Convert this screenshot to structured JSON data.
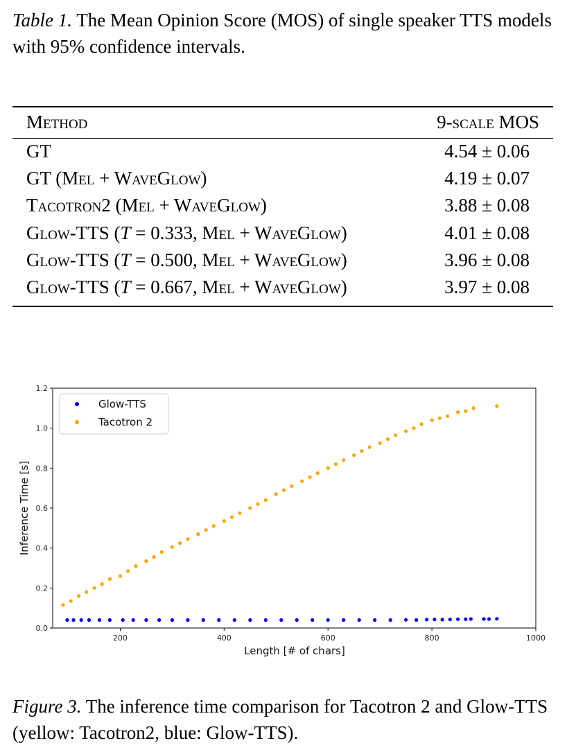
{
  "table_caption": {
    "lead": "Table 1.",
    "text": "The Mean Opinion Score (MOS) of single speaker TTS models with 95% confidence intervals."
  },
  "table": {
    "headers": {
      "method": "Method",
      "mos": "9-scale MOS"
    },
    "rows": [
      {
        "pre": "GT",
        "mid": "",
        "post": "",
        "mos": "4.54 ± 0.06"
      },
      {
        "pre": "GT (Mel + WaveGlow)",
        "mid": "",
        "post": "",
        "mos": "4.19 ± 0.07"
      },
      {
        "pre": "Tacotron2 (Mel + WaveGlow)",
        "mid": "",
        "post": "",
        "mos": "3.88 ± 0.08"
      },
      {
        "pre": "Glow-TTS (",
        "mid": "T",
        "post": " = 0.333, Mel + WaveGlow)",
        "mos": "4.01 ± 0.08"
      },
      {
        "pre": "Glow-TTS (",
        "mid": "T",
        "post": " = 0.500, Mel + WaveGlow)",
        "mos": "3.96 ± 0.08"
      },
      {
        "pre": "Glow-TTS (",
        "mid": "T",
        "post": " = 0.667, Mel + WaveGlow)",
        "mos": "3.97 ± 0.08"
      }
    ]
  },
  "chart_data": {
    "type": "scatter",
    "title": "",
    "xlabel": "Length [# of chars]",
    "ylabel": "Inference Time [s]",
    "xlim": [
      70,
      1000
    ],
    "ylim": [
      0.0,
      1.2
    ],
    "xticks": [
      "200",
      "400",
      "600",
      "800",
      "1000"
    ],
    "yticks": [
      "0.0",
      "0.2",
      "0.4",
      "0.6",
      "0.8",
      "1.0",
      "1.2"
    ],
    "legend_position": "top-left",
    "series": [
      {
        "name": "Glow-TTS",
        "color": "#0000ff",
        "points": [
          [
            98,
            0.04
          ],
          [
            110,
            0.04
          ],
          [
            125,
            0.04
          ],
          [
            140,
            0.04
          ],
          [
            160,
            0.04
          ],
          [
            180,
            0.04
          ],
          [
            205,
            0.04
          ],
          [
            225,
            0.04
          ],
          [
            250,
            0.04
          ],
          [
            275,
            0.04
          ],
          [
            300,
            0.04
          ],
          [
            330,
            0.04
          ],
          [
            360,
            0.04
          ],
          [
            390,
            0.04
          ],
          [
            420,
            0.04
          ],
          [
            450,
            0.04
          ],
          [
            480,
            0.04
          ],
          [
            510,
            0.04
          ],
          [
            540,
            0.04
          ],
          [
            570,
            0.04
          ],
          [
            600,
            0.04
          ],
          [
            630,
            0.04
          ],
          [
            660,
            0.04
          ],
          [
            690,
            0.04
          ],
          [
            720,
            0.04
          ],
          [
            750,
            0.041
          ],
          [
            770,
            0.04
          ],
          [
            790,
            0.042
          ],
          [
            805,
            0.043
          ],
          [
            820,
            0.042
          ],
          [
            835,
            0.043
          ],
          [
            850,
            0.044
          ],
          [
            865,
            0.044
          ],
          [
            875,
            0.045
          ],
          [
            900,
            0.045
          ],
          [
            910,
            0.045
          ],
          [
            925,
            0.046
          ]
        ]
      },
      {
        "name": "Tacotron 2",
        "color": "#ffa500",
        "points": [
          [
            90,
            0.115
          ],
          [
            105,
            0.135
          ],
          [
            120,
            0.16
          ],
          [
            135,
            0.18
          ],
          [
            150,
            0.2
          ],
          [
            165,
            0.22
          ],
          [
            180,
            0.245
          ],
          [
            200,
            0.26
          ],
          [
            215,
            0.285
          ],
          [
            230,
            0.31
          ],
          [
            250,
            0.335
          ],
          [
            265,
            0.355
          ],
          [
            280,
            0.38
          ],
          [
            300,
            0.405
          ],
          [
            315,
            0.425
          ],
          [
            330,
            0.445
          ],
          [
            350,
            0.47
          ],
          [
            365,
            0.49
          ],
          [
            380,
            0.51
          ],
          [
            400,
            0.535
          ],
          [
            415,
            0.555
          ],
          [
            430,
            0.575
          ],
          [
            450,
            0.6
          ],
          [
            465,
            0.62
          ],
          [
            480,
            0.64
          ],
          [
            500,
            0.67
          ],
          [
            515,
            0.69
          ],
          [
            530,
            0.71
          ],
          [
            550,
            0.735
          ],
          [
            565,
            0.755
          ],
          [
            580,
            0.775
          ],
          [
            600,
            0.8
          ],
          [
            615,
            0.82
          ],
          [
            630,
            0.84
          ],
          [
            650,
            0.865
          ],
          [
            665,
            0.885
          ],
          [
            680,
            0.905
          ],
          [
            700,
            0.925
          ],
          [
            715,
            0.945
          ],
          [
            730,
            0.965
          ],
          [
            750,
            0.985
          ],
          [
            765,
            1.0
          ],
          [
            780,
            1.02
          ],
          [
            800,
            1.04
          ],
          [
            815,
            1.05
          ],
          [
            830,
            1.06
          ],
          [
            850,
            1.08
          ],
          [
            865,
            1.085
          ],
          [
            880,
            1.1
          ],
          [
            925,
            1.11
          ]
        ]
      }
    ]
  },
  "figure_caption": {
    "lead": "Figure 3.",
    "text": "The inference time comparison for Tacotron 2 and Glow-TTS (yellow: Tacotron2, blue: Glow-TTS)."
  }
}
